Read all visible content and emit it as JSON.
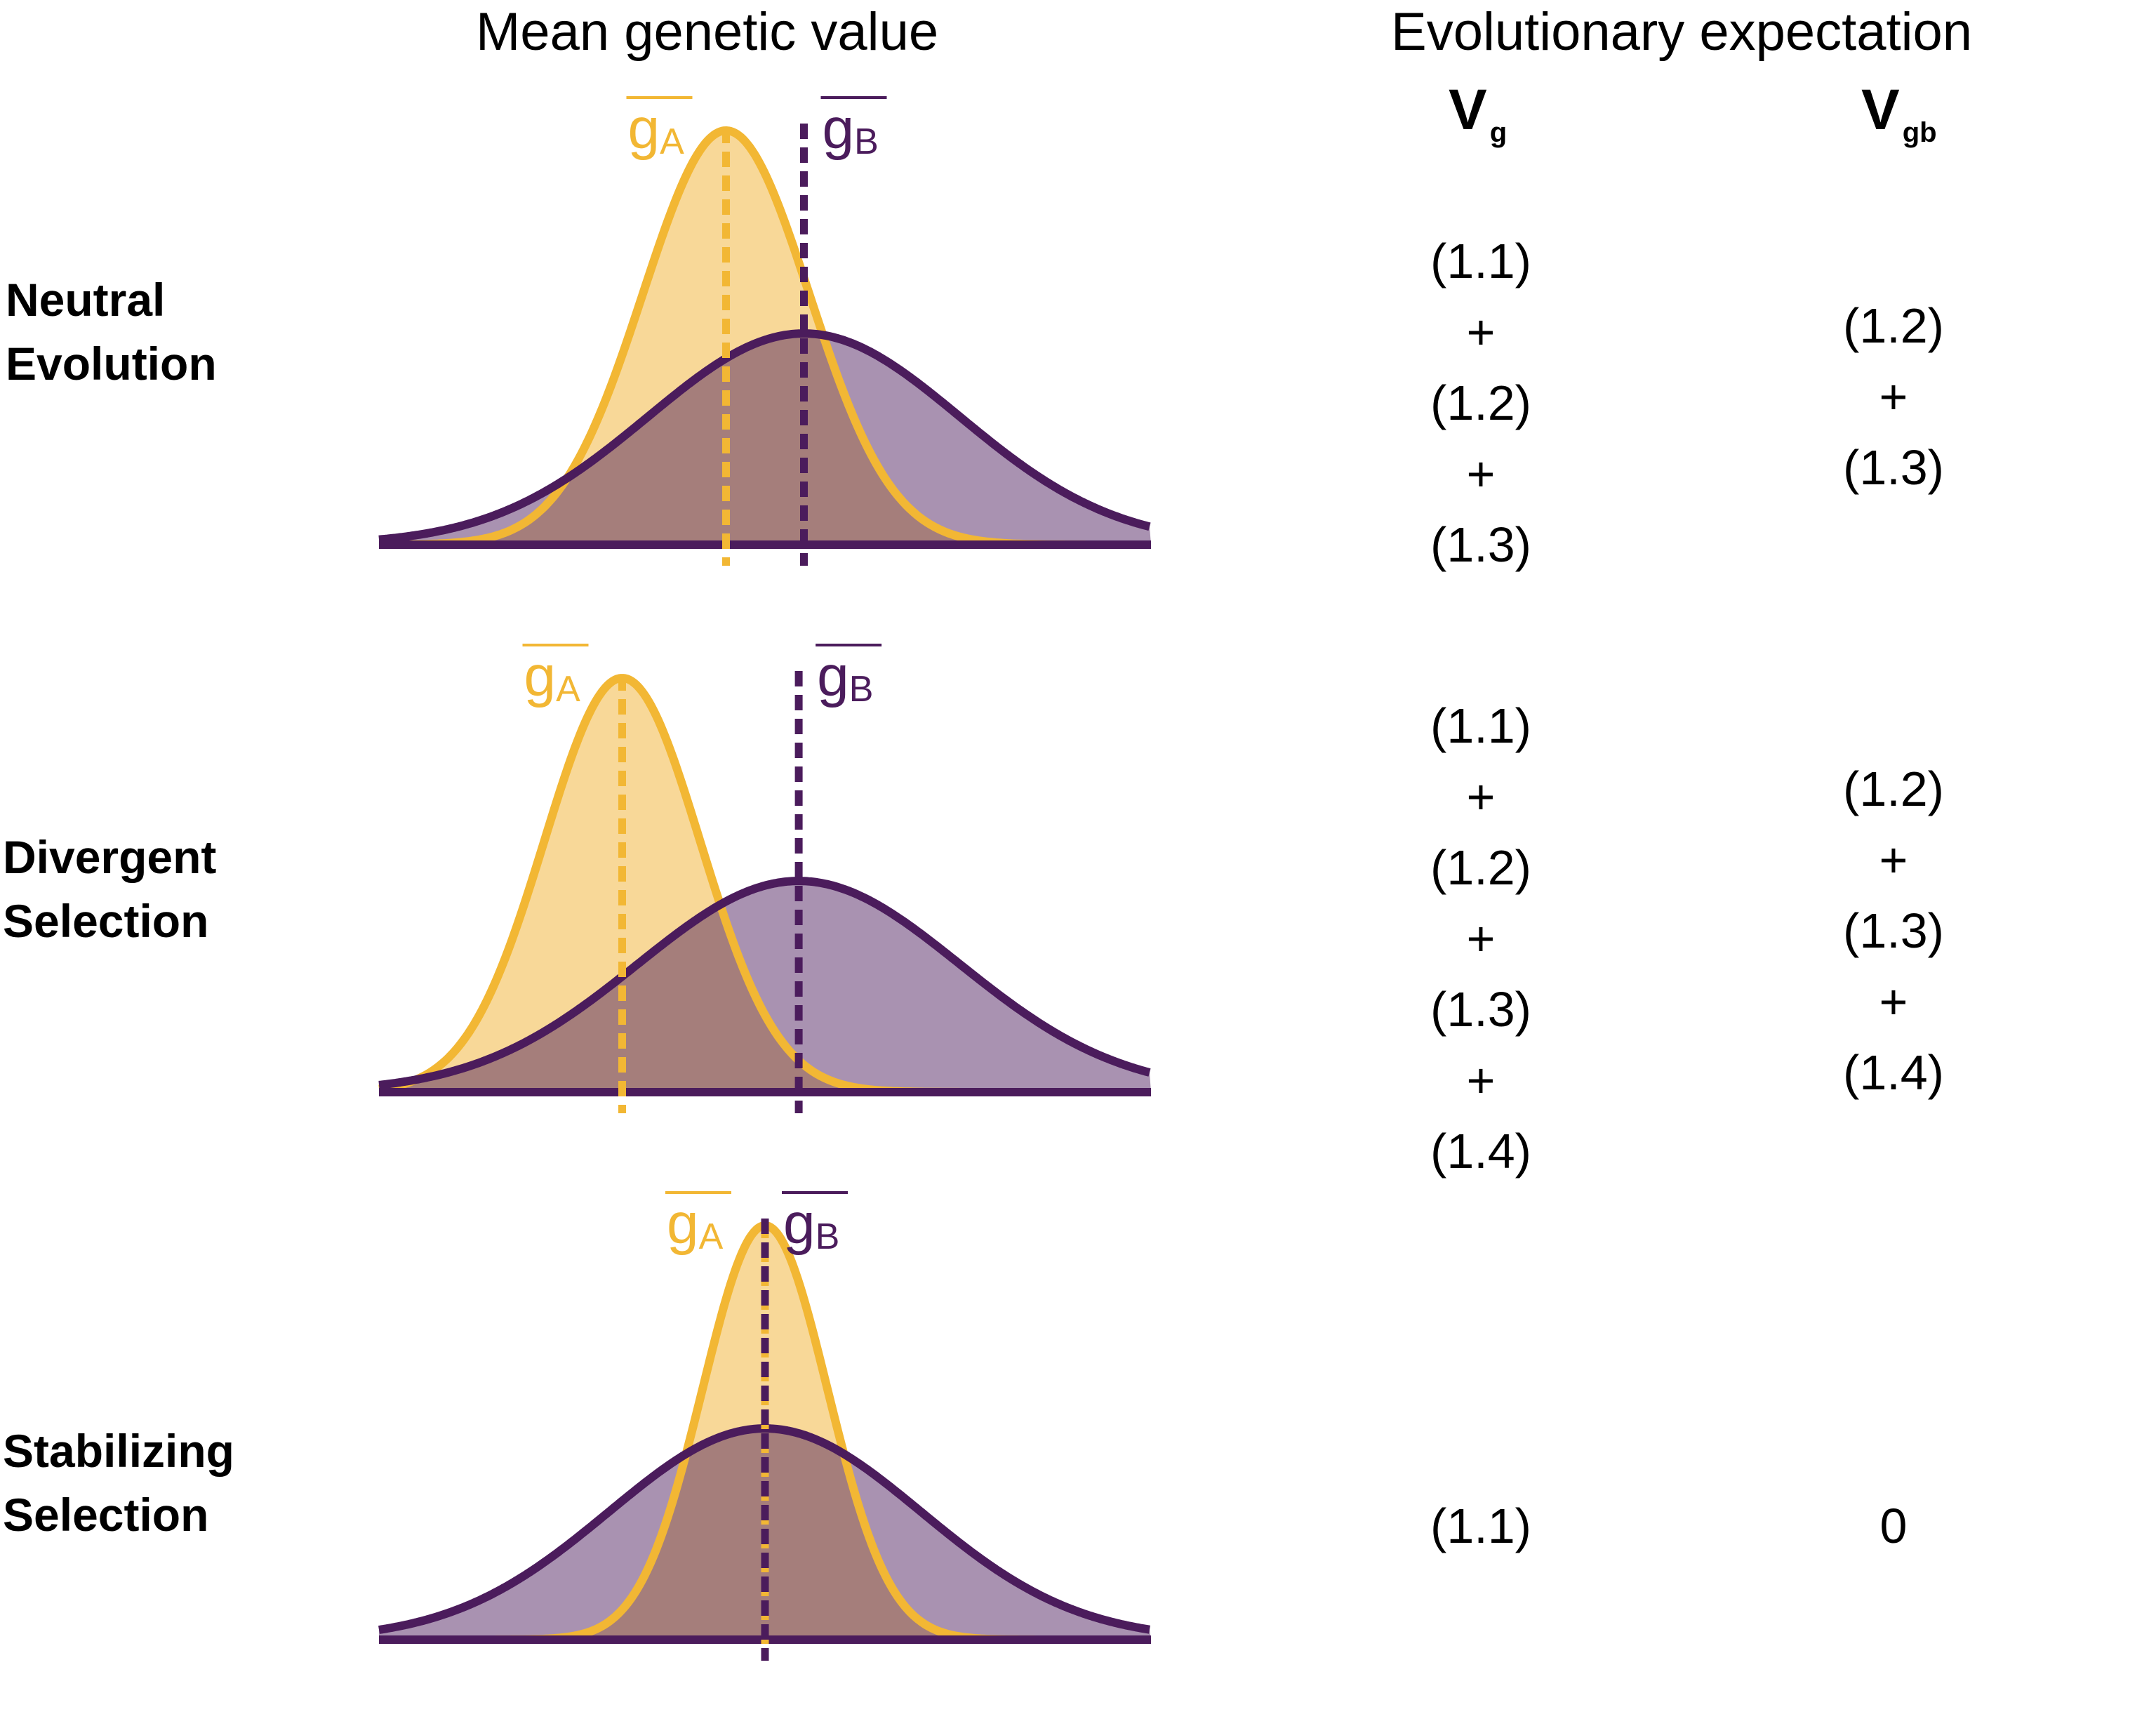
{
  "headers": {
    "left": "Mean genetic value",
    "right": "Evolutionary expectation"
  },
  "columns": {
    "vg": {
      "main": "V",
      "sub": "g"
    },
    "vgb": {
      "main": "V",
      "sub": "gb"
    }
  },
  "colors": {
    "population_a": "#f2b734",
    "population_a_fill": "#f8d898",
    "population_b": "#4b1c5c",
    "population_b_fill": "#a991b4",
    "overlap_fill": "#9e7a86"
  },
  "mean_labels": {
    "a": {
      "letter": "g",
      "sub": "A"
    },
    "b": {
      "letter": "g",
      "sub": "B"
    }
  },
  "rows": [
    {
      "id": "neutral",
      "label_line1": "Neutral",
      "label_line2": "Evolution",
      "vg": [
        "(1.1)",
        "+",
        "(1.2)",
        "+",
        "(1.3)"
      ],
      "vgb": [
        "(1.2)",
        "+",
        "(1.3)"
      ],
      "distributions": {
        "a": {
          "mean": -0.15,
          "sd": 0.32,
          "peak": 1.0
        },
        "b": {
          "mean": 0.15,
          "sd": 0.6,
          "peak": 0.51
        }
      }
    },
    {
      "id": "divergent",
      "label_line1": "Divergent",
      "label_line2": "Selection",
      "vg": [
        "(1.1)",
        "+",
        "(1.2)",
        "+",
        "(1.3)",
        "+",
        "(1.4)"
      ],
      "vgb": [
        "(1.2)",
        "+",
        "(1.3)",
        "+",
        "(1.4)"
      ],
      "distributions": {
        "a": {
          "mean": -0.55,
          "sd": 0.3,
          "peak": 1.0
        },
        "b": {
          "mean": 0.13,
          "sd": 0.62,
          "peak": 0.51
        }
      }
    },
    {
      "id": "stabilizing",
      "label_line1": "Stabilizing",
      "label_line2": "Selection",
      "vg": [
        "(1.1)"
      ],
      "vgb": [
        "0"
      ],
      "distributions": {
        "a": {
          "mean": 0.0,
          "sd": 0.24,
          "peak": 1.0
        },
        "b": {
          "mean": 0.0,
          "sd": 0.6,
          "peak": 0.51
        }
      }
    }
  ]
}
